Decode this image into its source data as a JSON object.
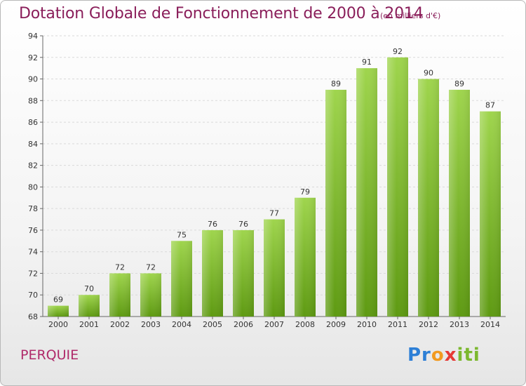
{
  "header": {
    "title": "Dotation Globale de Fonctionnement de 2000 à 2014",
    "subtitle": "(en milliers d'€)"
  },
  "footer": {
    "commune": "PERQUIE",
    "brand": [
      "Pr",
      "o",
      "x",
      "iti"
    ]
  },
  "colors": {
    "bar_top": "#9fd54d",
    "bar_bottom": "#5e9a12",
    "title": "#8a1e5a"
  },
  "chart_data": {
    "type": "bar",
    "title": "Dotation Globale de Fonctionnement de 2000 à 2014",
    "subtitle": "(en milliers d'€)",
    "xlabel": "",
    "ylabel": "",
    "categories": [
      "2000",
      "2001",
      "2002",
      "2003",
      "2004",
      "2005",
      "2006",
      "2007",
      "2008",
      "2009",
      "2010",
      "2011",
      "2012",
      "2013",
      "2014"
    ],
    "values": [
      69,
      70,
      72,
      72,
      75,
      76,
      76,
      77,
      79,
      89,
      91,
      92,
      90,
      89,
      87
    ],
    "ylim": [
      68,
      94
    ],
    "yticks": [
      68,
      70,
      72,
      74,
      76,
      78,
      80,
      82,
      84,
      86,
      88,
      90,
      92,
      94
    ],
    "grid": true,
    "legend": "none"
  }
}
